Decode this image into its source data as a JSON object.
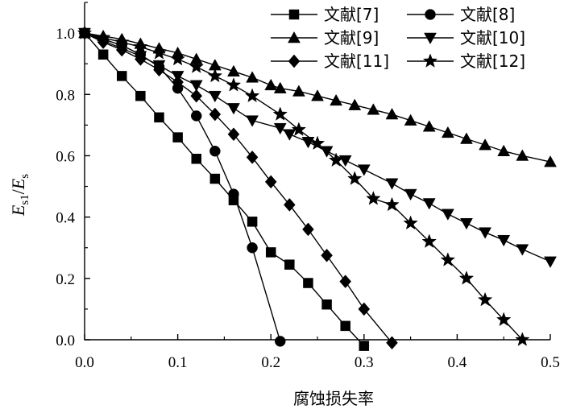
{
  "chart_data": {
    "type": "line",
    "xlabel": "腐蚀损失率",
    "ylabel": {
      "main": "E",
      "sub1": "s1",
      "sep": "/",
      "main2": "E",
      "sub2": "s"
    },
    "xlim": [
      0,
      0.5
    ],
    "ylim": [
      0,
      1.1
    ],
    "xticks": [
      0.0,
      0.1,
      0.2,
      0.3,
      0.4,
      0.5
    ],
    "yticks": [
      0.0,
      0.2,
      0.4,
      0.6,
      0.8,
      1.0
    ],
    "xtick_labels": [
      "0.0",
      "0.1",
      "0.2",
      "0.3",
      "0.4",
      "0.5"
    ],
    "ytick_labels": [
      "0.0",
      "0.2",
      "0.4",
      "0.6",
      "0.8",
      "1.0"
    ],
    "grid": false,
    "legend_position": "top-right",
    "series": [
      {
        "name": "文献[7]",
        "marker": "square",
        "x": [
          0.0,
          0.02,
          0.04,
          0.06,
          0.08,
          0.1,
          0.12,
          0.14,
          0.16,
          0.18,
          0.2,
          0.22,
          0.24,
          0.26,
          0.28,
          0.3
        ],
        "y": [
          1.0,
          0.93,
          0.86,
          0.795,
          0.725,
          0.66,
          0.59,
          0.525,
          0.455,
          0.385,
          0.285,
          0.245,
          0.185,
          0.115,
          0.045,
          -0.02
        ]
      },
      {
        "name": "文献[8]",
        "marker": "circle",
        "x": [
          0.0,
          0.02,
          0.04,
          0.06,
          0.08,
          0.1,
          0.12,
          0.14,
          0.16,
          0.18,
          0.21
        ],
        "y": [
          1.0,
          0.98,
          0.96,
          0.93,
          0.89,
          0.82,
          0.73,
          0.615,
          0.475,
          0.3,
          -0.005
        ]
      },
      {
        "name": "文献[9]",
        "marker": "triangle-up",
        "x": [
          0.0,
          0.02,
          0.04,
          0.06,
          0.08,
          0.1,
          0.12,
          0.14,
          0.16,
          0.18,
          0.2,
          0.21,
          0.23,
          0.25,
          0.27,
          0.29,
          0.31,
          0.33,
          0.35,
          0.37,
          0.39,
          0.41,
          0.43,
          0.45,
          0.47,
          0.5
        ],
        "y": [
          1.0,
          0.99,
          0.98,
          0.965,
          0.95,
          0.935,
          0.915,
          0.895,
          0.875,
          0.855,
          0.83,
          0.82,
          0.81,
          0.795,
          0.78,
          0.765,
          0.75,
          0.735,
          0.715,
          0.695,
          0.675,
          0.655,
          0.635,
          0.615,
          0.6,
          0.58
        ]
      },
      {
        "name": "文献[10]",
        "marker": "triangle-down",
        "x": [
          0.0,
          0.02,
          0.04,
          0.06,
          0.08,
          0.1,
          0.12,
          0.14,
          0.16,
          0.18,
          0.21,
          0.22,
          0.24,
          0.26,
          0.28,
          0.3,
          0.33,
          0.35,
          0.37,
          0.39,
          0.41,
          0.43,
          0.45,
          0.47,
          0.5
        ],
        "y": [
          1.0,
          0.975,
          0.95,
          0.925,
          0.895,
          0.86,
          0.83,
          0.795,
          0.755,
          0.715,
          0.69,
          0.67,
          0.645,
          0.615,
          0.585,
          0.555,
          0.51,
          0.475,
          0.445,
          0.41,
          0.38,
          0.35,
          0.325,
          0.295,
          0.255
        ]
      },
      {
        "name": "文献[11]",
        "marker": "diamond",
        "x": [
          0.0,
          0.02,
          0.04,
          0.06,
          0.08,
          0.1,
          0.12,
          0.14,
          0.16,
          0.18,
          0.2,
          0.22,
          0.24,
          0.26,
          0.28,
          0.3,
          0.33
        ],
        "y": [
          1.0,
          0.97,
          0.945,
          0.915,
          0.88,
          0.84,
          0.795,
          0.735,
          0.67,
          0.595,
          0.515,
          0.44,
          0.36,
          0.275,
          0.19,
          0.1,
          -0.01
        ]
      },
      {
        "name": "文献[12]",
        "marker": "star",
        "x": [
          0.0,
          0.02,
          0.04,
          0.06,
          0.08,
          0.1,
          0.12,
          0.14,
          0.16,
          0.18,
          0.21,
          0.23,
          0.25,
          0.27,
          0.29,
          0.31,
          0.33,
          0.35,
          0.37,
          0.39,
          0.41,
          0.43,
          0.45,
          0.47
        ],
        "y": [
          1.0,
          0.985,
          0.97,
          0.955,
          0.935,
          0.915,
          0.89,
          0.86,
          0.83,
          0.795,
          0.735,
          0.685,
          0.64,
          0.585,
          0.525,
          0.46,
          0.44,
          0.38,
          0.32,
          0.26,
          0.2,
          0.13,
          0.065,
          0.0
        ]
      }
    ]
  }
}
